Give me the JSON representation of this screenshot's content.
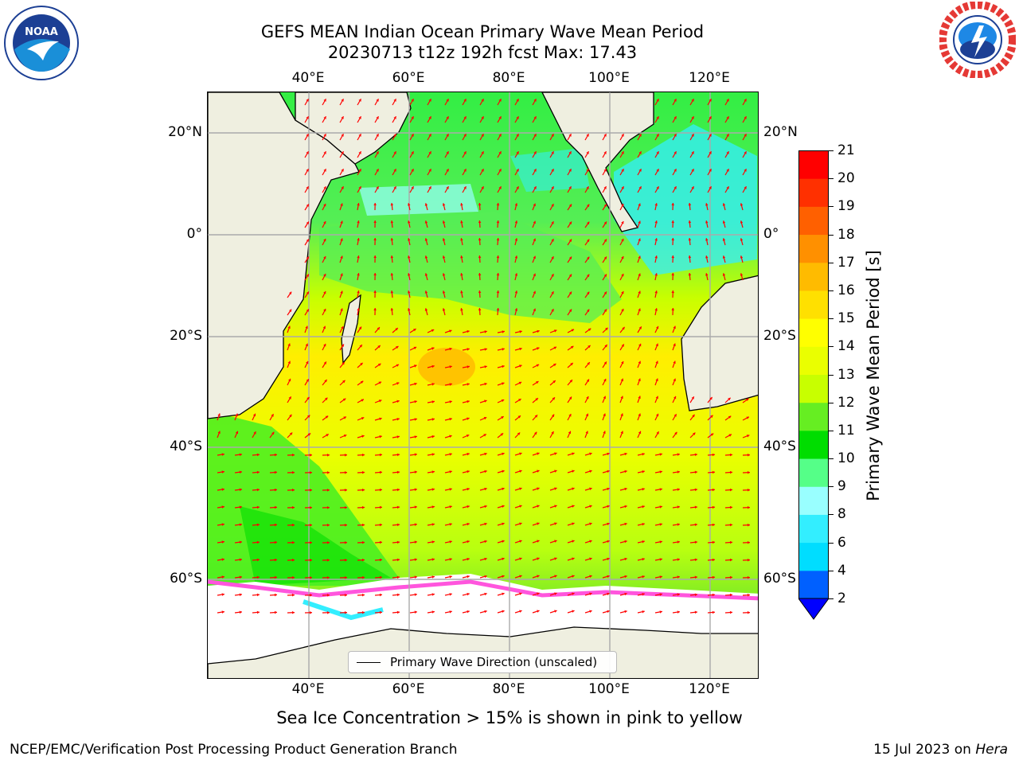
{
  "header": {
    "title_line1": "GEFS MEAN Indian Ocean Primary Wave Mean Period",
    "title_line2": "20230713 t12z 192h fcst   Max: 17.43"
  },
  "map": {
    "region": "Indian Ocean",
    "lon_labels_top": [
      "40°E",
      "60°E",
      "80°E",
      "100°E",
      "120°E"
    ],
    "lon_labels_bottom": [
      "40°E",
      "60°E",
      "80°E",
      "100°E",
      "120°E"
    ],
    "lat_labels_left": [
      "20°N",
      "0°",
      "20°S",
      "40°S",
      "60°S"
    ],
    "lat_labels_right": [
      "20°N",
      "0°",
      "20°S",
      "40°S",
      "60°S"
    ],
    "grid": true,
    "land_color": "#efefe0",
    "arrow_color": "#ff0000",
    "legend": {
      "label": "Primary Wave Direction (unscaled)",
      "placement": "bottom-center"
    }
  },
  "colorbar": {
    "label": "Primary Wave Mean Period [s]",
    "ticks": [
      "2",
      "4",
      "6",
      "8",
      "9",
      "10",
      "11",
      "12",
      "13",
      "14",
      "15",
      "16",
      "17",
      "18",
      "19",
      "20",
      "21"
    ],
    "colors": [
      "#0060ff",
      "#00ddff",
      "#33eeff",
      "#99ffff",
      "#55ff88",
      "#00dd00",
      "#66ee22",
      "#c8ff00",
      "#eaff00",
      "#ffff00",
      "#ffe000",
      "#ffbb00",
      "#ff9000",
      "#ff6000",
      "#ff3000",
      "#ff0000"
    ],
    "extend_below_color": "#0000ff"
  },
  "caption": "Sea Ice Concentration > 15% is shown in pink to yellow",
  "footer": {
    "left": "NCEP/EMC/Verification Post Processing Product Generation Branch",
    "right_prefix": "15 Jul 2023 on ",
    "right_host": "Hera"
  },
  "logos": {
    "noaa_text": "NOAA",
    "nws_text": "NATIONAL WEATHER SERVICE"
  }
}
